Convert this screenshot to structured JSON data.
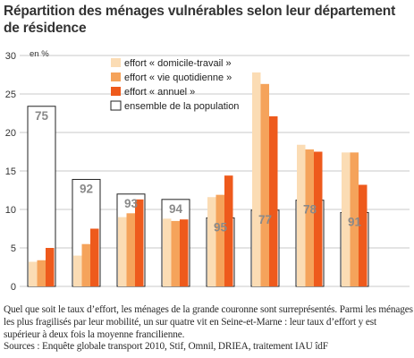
{
  "title": "Répartition des ménages vulnérables selon leur département de résidence",
  "caption": "Quel que soit le taux d’effort, les ménages de la grande couronne sont surreprésentés. Parmi les ménages les plus fragilisés par leur mobilité, un sur quatre vit en Seine-et-Marne : leur taux d’effort y est supérieur à deux fois la moyenne francilienne.",
  "source": "Sources : Enquête globale transport 2010, Stif, Omnil, DRIEA, traitement IAU îdF",
  "chart_data": {
    "type": "bar",
    "ylabel": "en %",
    "ylim": [
      0,
      30
    ],
    "yticks": [
      0,
      5,
      10,
      15,
      20,
      25,
      30
    ],
    "grid": true,
    "legend_position": "top-right",
    "categories": [
      "75",
      "92",
      "93",
      "94",
      "95",
      "77",
      "78",
      "91"
    ],
    "series": [
      {
        "name": "effort « domicile-travail »",
        "color": "#fbdcb4",
        "values": [
          3.2,
          4.0,
          9.0,
          8.8,
          11.6,
          27.8,
          18.4,
          17.4
        ]
      },
      {
        "name": "effort « vie quotidienne »",
        "color": "#f5a35b",
        "values": [
          3.4,
          5.5,
          9.5,
          8.5,
          11.9,
          26.3,
          17.8,
          17.4
        ]
      },
      {
        "name": "effort « annuel »",
        "color": "#ee5a1c",
        "values": [
          5.0,
          7.5,
          11.3,
          8.7,
          14.4,
          22.1,
          17.5,
          13.2
        ]
      },
      {
        "name": "ensemble de la population",
        "color": "#ffffff",
        "values": [
          23.4,
          13.9,
          12.0,
          11.3,
          8.9,
          9.9,
          11.2,
          9.6
        ]
      }
    ]
  }
}
